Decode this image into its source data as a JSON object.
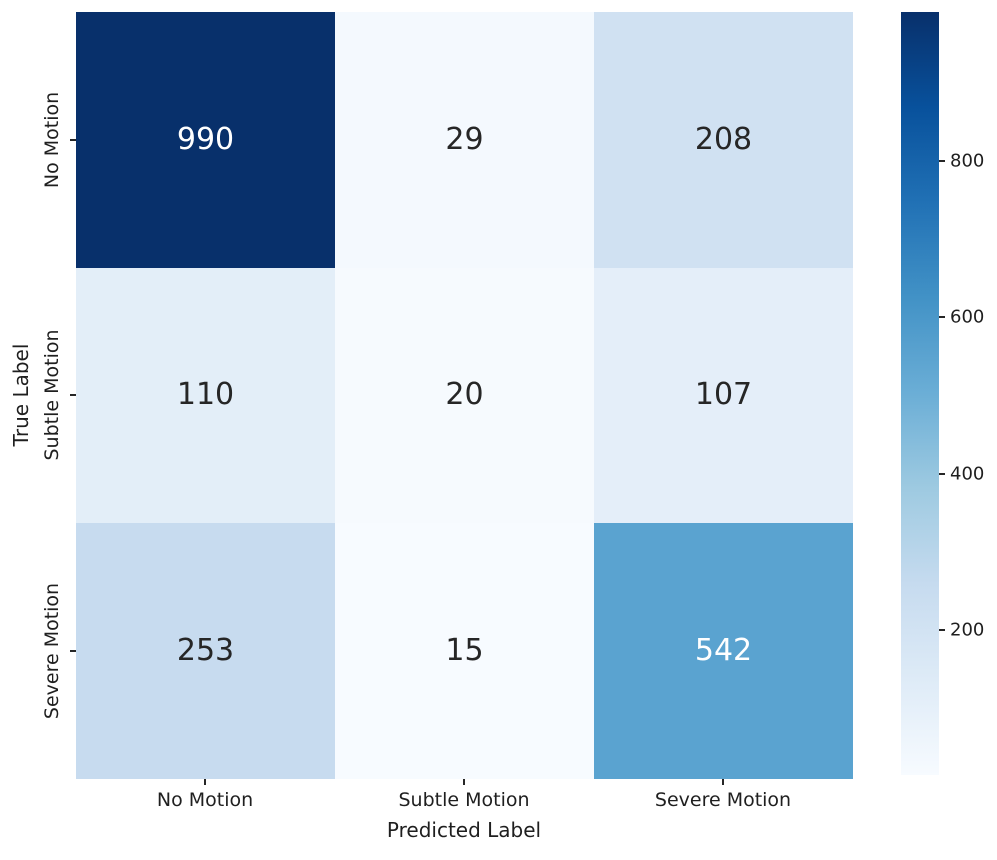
{
  "chart_data": {
    "type": "heatmap",
    "title": "",
    "xlabel": "Predicted Label",
    "ylabel": "True Label",
    "categories": [
      "No Motion",
      "Subtle Motion",
      "Severe Motion"
    ],
    "matrix": [
      [
        990,
        29,
        208
      ],
      [
        110,
        20,
        107
      ],
      [
        253,
        15,
        542
      ]
    ],
    "vmin": 15,
    "vmax": 990,
    "colormap": "Blues",
    "grid": false,
    "cell_colors": [
      [
        "#08306b",
        "#f4f9fe",
        "#d0e1f2"
      ],
      [
        "#e3eef8",
        "#f6fafe",
        "#e4eef9"
      ],
      [
        "#c7dbef",
        "#f7fbff",
        "#5aa3d0"
      ]
    ],
    "cell_text_colors": [
      [
        "#ffffff",
        "#262626",
        "#262626"
      ],
      [
        "#262626",
        "#262626",
        "#262626"
      ],
      [
        "#262626",
        "#262626",
        "#ffffff"
      ]
    ],
    "colorbar": {
      "position": "right",
      "ticks": [
        200,
        400,
        600,
        800
      ],
      "tick_labels": [
        "200",
        "400",
        "600",
        "800"
      ],
      "gradient_stops": [
        "#f7fbff",
        "#deebf7",
        "#c6dbef",
        "#9ecae1",
        "#6baed6",
        "#4292c6",
        "#2171b5",
        "#08519c",
        "#08306b"
      ]
    }
  }
}
